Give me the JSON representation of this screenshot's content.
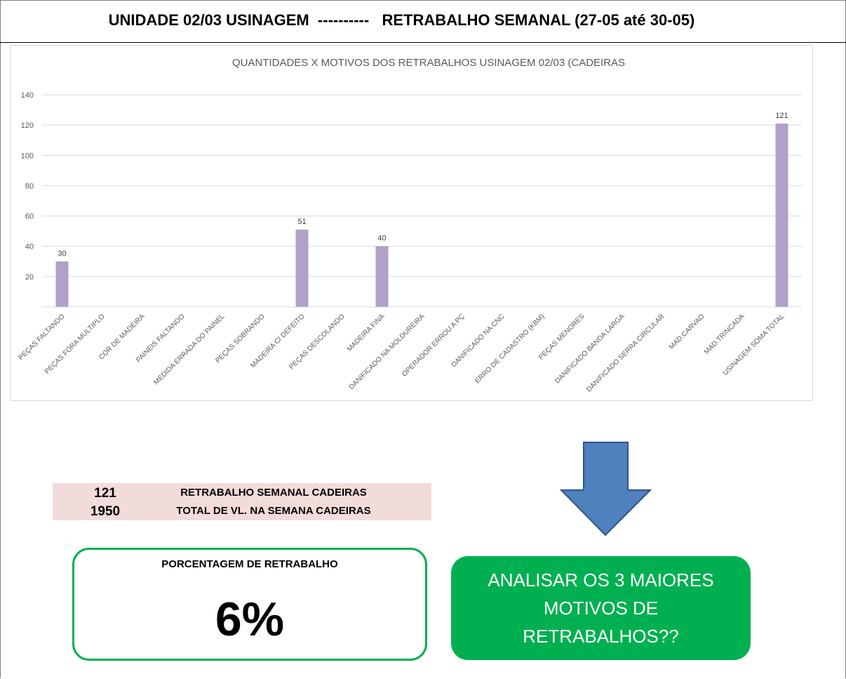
{
  "header": {
    "title": "UNIDADE 02/03 USINAGEM  ----------   RETRABALHO SEMANAL (27-05 até 30-05)"
  },
  "chart_data": {
    "type": "bar",
    "title": "QUANTIDADES X MOTIVOS DOS RETRABALHOS USINAGEM 02/03 (CADEIRAS",
    "xlabel": "",
    "ylabel": "",
    "ylim": [
      0,
      140
    ],
    "yticks": [
      20,
      40,
      60,
      80,
      100,
      120,
      140
    ],
    "grid": true,
    "bar_color": "#b1a0c7",
    "categories": [
      "PEÇAS FALTANDO",
      "PEÇAS FORA MULTIPLO",
      "COR DE MADEIRA",
      "PAINEIS FALTANDO",
      "MEDIDA ERRADA DO PAINEL",
      "PEÇAS SOBRANDO",
      "MADEIRA C/ DEFEITO",
      "PEÇAS DESCOLANDO",
      "MADEIRA FINA",
      "DANIFICADO NA MOLDUREIRA",
      "OPERADOR ERROU A PÇ",
      "DANIFICADO NA CNC",
      "ERRO DE CADASTRO (KBM)",
      "PEÇAS MENORES",
      "DANIFICADO BANDA LARGA",
      "DANIFICADO SERRA CIRCULAR",
      "MAD.CARVAO",
      "MAD.TRINCADA",
      "USINAGEM SOMA TOTAL"
    ],
    "values": [
      30,
      null,
      null,
      null,
      null,
      null,
      51,
      null,
      40,
      null,
      null,
      null,
      null,
      null,
      null,
      null,
      null,
      null,
      121
    ]
  },
  "summary": {
    "rows": [
      {
        "value": "121",
        "label": "RETRABALHO SEMANAL CADEIRAS"
      },
      {
        "value": "1950",
        "label": "TOTAL DE VL. NA SEMANA CADEIRAS"
      }
    ]
  },
  "percentage": {
    "label": "PORCENTAGEM DE RETRABALHO",
    "value": "6%"
  },
  "action": {
    "text": "ANALISAR OS 3 MAIORES MOTIVOS DE RETRABALHOS??"
  },
  "colors": {
    "accent_green": "#00b050",
    "arrow_blue": "#4f81bd",
    "table_bg": "#f2dcdb"
  }
}
